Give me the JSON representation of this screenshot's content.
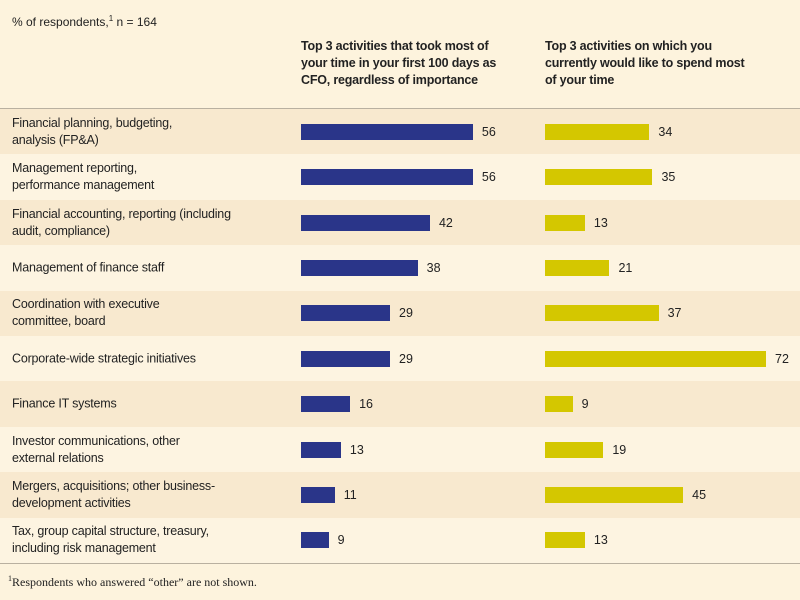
{
  "chart_data": {
    "type": "bar",
    "orientation": "horizontal",
    "subtitle": {
      "label": "% of respondents,",
      "marker": "1",
      "n": "n = 164"
    },
    "categories": [
      "Financial planning, budgeting,\nanalysis (FP&A)",
      "Management reporting,\nperformance management",
      "Financial accounting, reporting (including\naudit, compliance)",
      "Management of finance staff",
      "Coordination with executive\ncommittee, board",
      "Corporate-wide strategic initiatives",
      "Finance IT systems",
      "Investor communications, other\nexternal relations",
      "Mergers, acquisitions; other business-\ndevelopment activities",
      "Tax, group capital structure, treasury,\nincluding risk management"
    ],
    "series": [
      {
        "name": "Top 3 activities that took most of\nyour time in your first 100 days as\nCFO, regardless of importance",
        "color": "#2a3589",
        "values": [
          56,
          56,
          42,
          38,
          29,
          29,
          16,
          13,
          11,
          9
        ]
      },
      {
        "name": "Top 3 activities on which you\ncurrently would like to spend most\nof your time",
        "color": "#d4c700",
        "values": [
          34,
          35,
          13,
          21,
          37,
          72,
          9,
          19,
          45,
          13
        ]
      }
    ],
    "footnote": {
      "marker": "1",
      "text": "Respondents who answered “other” are not shown."
    }
  }
}
